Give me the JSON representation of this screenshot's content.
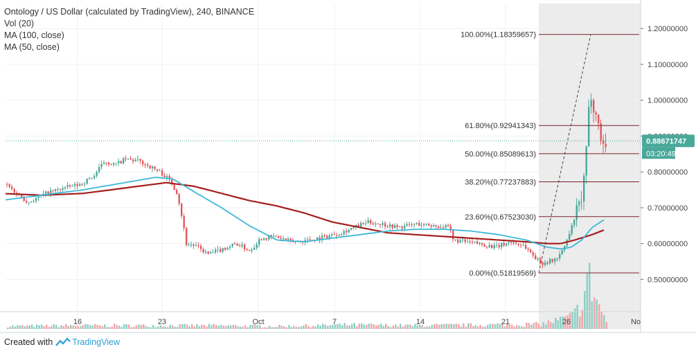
{
  "legend": {
    "title": "Ontology / US Dollar (calculated by TradingView), 240, BINANCE",
    "vol": "Vol (20)",
    "ma100": "MA (100, close)",
    "ma50": "MA (50, close)"
  },
  "footer": {
    "created_with": "Created with",
    "brand": "TradingView"
  },
  "colors": {
    "up": "#4aa89a",
    "down": "#e0585c",
    "ma50": "#3db8d8",
    "ma100": "#a51d1d",
    "fib": "#7a1f2a",
    "highlight": "#ececec",
    "grid": "#eef1f5",
    "axis": "#6b6b6b"
  },
  "chart_data": {
    "type": "candlestick",
    "symbol": "ONTUSD",
    "interval": "240",
    "x_ticks": [
      "16",
      "23",
      "Oct",
      "7",
      "14",
      "21",
      "26",
      "No"
    ],
    "y_ticks": [
      "1.20000000",
      "1.10000000",
      "1.00000000",
      "0.90000000",
      "0.80000000",
      "0.70000000",
      "0.60000000",
      "0.50000000"
    ],
    "y_range": [
      0.41,
      1.27
    ],
    "last_price": "0.88671747",
    "countdown": "03:20:49",
    "fib_levels": [
      {
        "label": "100.00%(1.18359657)",
        "value": 1.18359657
      },
      {
        "label": "61.80%(0.92941343)",
        "value": 0.92941343
      },
      {
        "label": "50.00%(0.85089613)",
        "value": 0.85089613
      },
      {
        "label": "38.20%(0.77237883)",
        "value": 0.77237883
      },
      {
        "label": "23.60%(0.67523030)",
        "value": 0.6752303
      },
      {
        "label": "0.00%(0.51819569)",
        "value": 0.51819569
      }
    ],
    "price_path": [
      [
        0,
        0.78
      ],
      [
        20,
        0.745
      ],
      [
        40,
        0.715
      ],
      [
        65,
        0.74
      ],
      [
        90,
        0.755
      ],
      [
        115,
        0.765
      ],
      [
        135,
        0.79
      ],
      [
        150,
        0.83
      ],
      [
        165,
        0.82
      ],
      [
        180,
        0.835
      ],
      [
        200,
        0.83
      ],
      [
        215,
        0.815
      ],
      [
        230,
        0.8
      ],
      [
        245,
        0.775
      ],
      [
        255,
        0.74
      ],
      [
        262,
        0.67
      ],
      [
        268,
        0.6
      ],
      [
        280,
        0.595
      ],
      [
        300,
        0.57
      ],
      [
        320,
        0.585
      ],
      [
        340,
        0.6
      ],
      [
        360,
        0.58
      ],
      [
        375,
        0.615
      ],
      [
        395,
        0.62
      ],
      [
        420,
        0.605
      ],
      [
        445,
        0.61
      ],
      [
        470,
        0.62
      ],
      [
        490,
        0.63
      ],
      [
        510,
        0.645
      ],
      [
        530,
        0.66
      ],
      [
        550,
        0.655
      ],
      [
        575,
        0.645
      ],
      [
        600,
        0.655
      ],
      [
        625,
        0.65
      ],
      [
        648,
        0.645
      ],
      [
        652,
        0.61
      ],
      [
        670,
        0.605
      ],
      [
        690,
        0.6
      ],
      [
        715,
        0.59
      ],
      [
        735,
        0.605
      ],
      [
        755,
        0.595
      ],
      [
        770,
        0.565
      ],
      [
        780,
        0.545
      ],
      [
        800,
        0.555
      ],
      [
        810,
        0.575
      ],
      [
        820,
        0.62
      ],
      [
        830,
        0.68
      ],
      [
        840,
        0.73
      ],
      [
        845,
        0.84
      ],
      [
        848,
        0.95
      ],
      [
        852,
        1.02
      ],
      [
        856,
        0.985
      ],
      [
        862,
        0.94
      ],
      [
        866,
        0.9
      ],
      [
        870,
        0.875
      ],
      [
        875,
        0.885
      ]
    ],
    "ma50_path": [
      [
        0,
        0.72
      ],
      [
        60,
        0.735
      ],
      [
        120,
        0.75
      ],
      [
        180,
        0.77
      ],
      [
        225,
        0.785
      ],
      [
        250,
        0.78
      ],
      [
        280,
        0.745
      ],
      [
        320,
        0.7
      ],
      [
        360,
        0.65
      ],
      [
        400,
        0.61
      ],
      [
        440,
        0.605
      ],
      [
        480,
        0.615
      ],
      [
        520,
        0.625
      ],
      [
        560,
        0.635
      ],
      [
        600,
        0.64
      ],
      [
        640,
        0.64
      ],
      [
        680,
        0.635
      ],
      [
        720,
        0.625
      ],
      [
        760,
        0.61
      ],
      [
        790,
        0.59
      ],
      [
        810,
        0.585
      ],
      [
        825,
        0.59
      ],
      [
        840,
        0.61
      ],
      [
        855,
        0.645
      ],
      [
        875,
        0.67
      ]
    ],
    "ma100_path": [
      [
        0,
        0.74
      ],
      [
        60,
        0.735
      ],
      [
        120,
        0.74
      ],
      [
        180,
        0.755
      ],
      [
        240,
        0.77
      ],
      [
        280,
        0.76
      ],
      [
        320,
        0.74
      ],
      [
        360,
        0.72
      ],
      [
        400,
        0.705
      ],
      [
        440,
        0.685
      ],
      [
        480,
        0.66
      ],
      [
        520,
        0.645
      ],
      [
        560,
        0.63
      ],
      [
        600,
        0.625
      ],
      [
        640,
        0.62
      ],
      [
        680,
        0.615
      ],
      [
        720,
        0.61
      ],
      [
        760,
        0.605
      ],
      [
        790,
        0.6
      ],
      [
        810,
        0.6
      ],
      [
        830,
        0.61
      ],
      [
        855,
        0.625
      ],
      [
        875,
        0.64
      ]
    ],
    "volume_path": [
      [
        0,
        4
      ],
      [
        100,
        5
      ],
      [
        200,
        5
      ],
      [
        300,
        5
      ],
      [
        400,
        4
      ],
      [
        500,
        6
      ],
      [
        600,
        5
      ],
      [
        700,
        6
      ],
      [
        780,
        7
      ],
      [
        810,
        14
      ],
      [
        825,
        18
      ],
      [
        835,
        30
      ],
      [
        842,
        45
      ],
      [
        848,
        80
      ],
      [
        852,
        60
      ],
      [
        858,
        45
      ],
      [
        864,
        35
      ],
      [
        870,
        18
      ],
      [
        878,
        8
      ]
    ]
  }
}
